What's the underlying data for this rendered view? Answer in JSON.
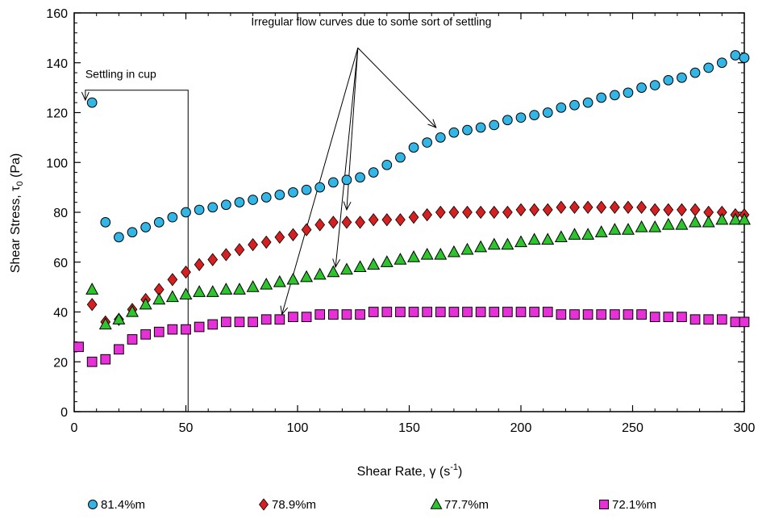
{
  "chart_data": {
    "type": "scatter",
    "title": "",
    "xlabel": "Shear Rate, γ (s",
    "xlabel_sup": "-1",
    "xlabel_tail": ")",
    "ylabel": "Shear Stress, τ",
    "ylabel_sub": "0",
    "ylabel_tail": " (Pa)",
    "xlim": [
      0,
      300
    ],
    "ylim": [
      0,
      160
    ],
    "x_ticks": [
      "0",
      "50",
      "100",
      "150",
      "200",
      "250",
      "300"
    ],
    "y_ticks": [
      "0",
      "20",
      "40",
      "60",
      "80",
      "100",
      "120",
      "140",
      "160"
    ],
    "grid": false,
    "legend_position": "bottom",
    "series": [
      {
        "name": "81.4%m",
        "marker": "circle",
        "color": "#33b5e5",
        "x": [
          8,
          14,
          20,
          26,
          32,
          38,
          44,
          50,
          56,
          62,
          68,
          74,
          80,
          86,
          92,
          98,
          104,
          110,
          116,
          122,
          128,
          134,
          140,
          146,
          152,
          158,
          164,
          170,
          176,
          182,
          188,
          194,
          200,
          206,
          212,
          218,
          224,
          230,
          236,
          242,
          248,
          254,
          260,
          266,
          272,
          278,
          284,
          290,
          296,
          300
        ],
        "y": [
          124,
          76,
          70,
          72,
          74,
          76,
          78,
          80,
          81,
          82,
          83,
          84,
          85,
          86,
          87,
          88,
          89,
          90,
          92,
          93,
          94,
          96,
          99,
          102,
          106,
          108,
          110,
          112,
          113,
          114,
          115,
          117,
          118,
          119,
          120,
          122,
          123,
          124,
          126,
          127,
          128,
          130,
          131,
          133,
          134,
          136,
          138,
          140,
          143,
          142
        ]
      },
      {
        "name": "78.9%m",
        "marker": "diamond",
        "color": "#d42020",
        "x": [
          8,
          14,
          20,
          26,
          32,
          38,
          44,
          50,
          56,
          62,
          68,
          74,
          80,
          86,
          92,
          98,
          104,
          110,
          116,
          122,
          128,
          134,
          140,
          146,
          152,
          158,
          164,
          170,
          176,
          182,
          188,
          194,
          200,
          206,
          212,
          218,
          224,
          230,
          236,
          242,
          248,
          254,
          260,
          266,
          272,
          278,
          284,
          290,
          296,
          300
        ],
        "y": [
          43,
          36,
          37,
          41,
          45,
          49,
          53,
          56,
          59,
          61,
          63,
          65,
          67,
          68,
          70,
          71,
          73,
          75,
          76,
          76,
          76,
          77,
          77,
          77,
          78,
          79,
          80,
          80,
          80,
          80,
          80,
          80,
          81,
          81,
          81,
          82,
          82,
          82,
          82,
          82,
          82,
          82,
          81,
          81,
          81,
          81,
          80,
          80,
          79,
          79
        ]
      },
      {
        "name": "77.7%m",
        "marker": "triangle",
        "color": "#2ec42e",
        "x": [
          8,
          14,
          20,
          26,
          32,
          38,
          44,
          50,
          56,
          62,
          68,
          74,
          80,
          86,
          92,
          98,
          104,
          110,
          116,
          122,
          128,
          134,
          140,
          146,
          152,
          158,
          164,
          170,
          176,
          182,
          188,
          194,
          200,
          206,
          212,
          218,
          224,
          230,
          236,
          242,
          248,
          254,
          260,
          266,
          272,
          278,
          284,
          290,
          296,
          300
        ],
        "y": [
          49,
          35,
          37,
          40,
          43,
          45,
          46,
          47,
          48,
          48,
          49,
          49,
          50,
          51,
          52,
          53,
          54,
          55,
          56,
          57,
          58,
          59,
          60,
          61,
          62,
          63,
          63,
          64,
          65,
          66,
          67,
          67,
          68,
          69,
          69,
          70,
          71,
          71,
          72,
          73,
          73,
          74,
          74,
          75,
          75,
          76,
          76,
          77,
          77,
          77
        ]
      },
      {
        "name": "72.1%m",
        "marker": "square",
        "color": "#e830d8",
        "x": [
          2,
          8,
          14,
          20,
          26,
          32,
          38,
          44,
          50,
          56,
          62,
          68,
          74,
          80,
          86,
          92,
          98,
          104,
          110,
          116,
          122,
          128,
          134,
          140,
          146,
          152,
          158,
          164,
          170,
          176,
          182,
          188,
          194,
          200,
          206,
          212,
          218,
          224,
          230,
          236,
          242,
          248,
          254,
          260,
          266,
          272,
          278,
          284,
          290,
          296,
          300
        ],
        "y": [
          26,
          20,
          21,
          25,
          29,
          31,
          32,
          33,
          33,
          34,
          35,
          36,
          36,
          36,
          37,
          37,
          38,
          38,
          39,
          39,
          39,
          39,
          40,
          40,
          40,
          40,
          40,
          40,
          40,
          40,
          40,
          40,
          40,
          40,
          40,
          40,
          39,
          39,
          39,
          39,
          39,
          39,
          39,
          38,
          38,
          38,
          37,
          37,
          37,
          36,
          36
        ]
      }
    ],
    "annotations": [
      {
        "text": "Irregular flow curves due to some sort of settling",
        "anchor": [
          133,
          155
        ],
        "from": [
          127,
          146
        ],
        "targets": [
          [
            162,
            114
          ],
          [
            122,
            81
          ],
          [
            117,
            58
          ],
          [
            93,
            39
          ]
        ]
      },
      {
        "text": "Settling in cup",
        "anchor": [
          5,
          134
        ],
        "path": [
          [
            51,
            0
          ],
          [
            51,
            129
          ],
          [
            5,
            129
          ],
          [
            5,
            125
          ]
        ]
      }
    ]
  }
}
